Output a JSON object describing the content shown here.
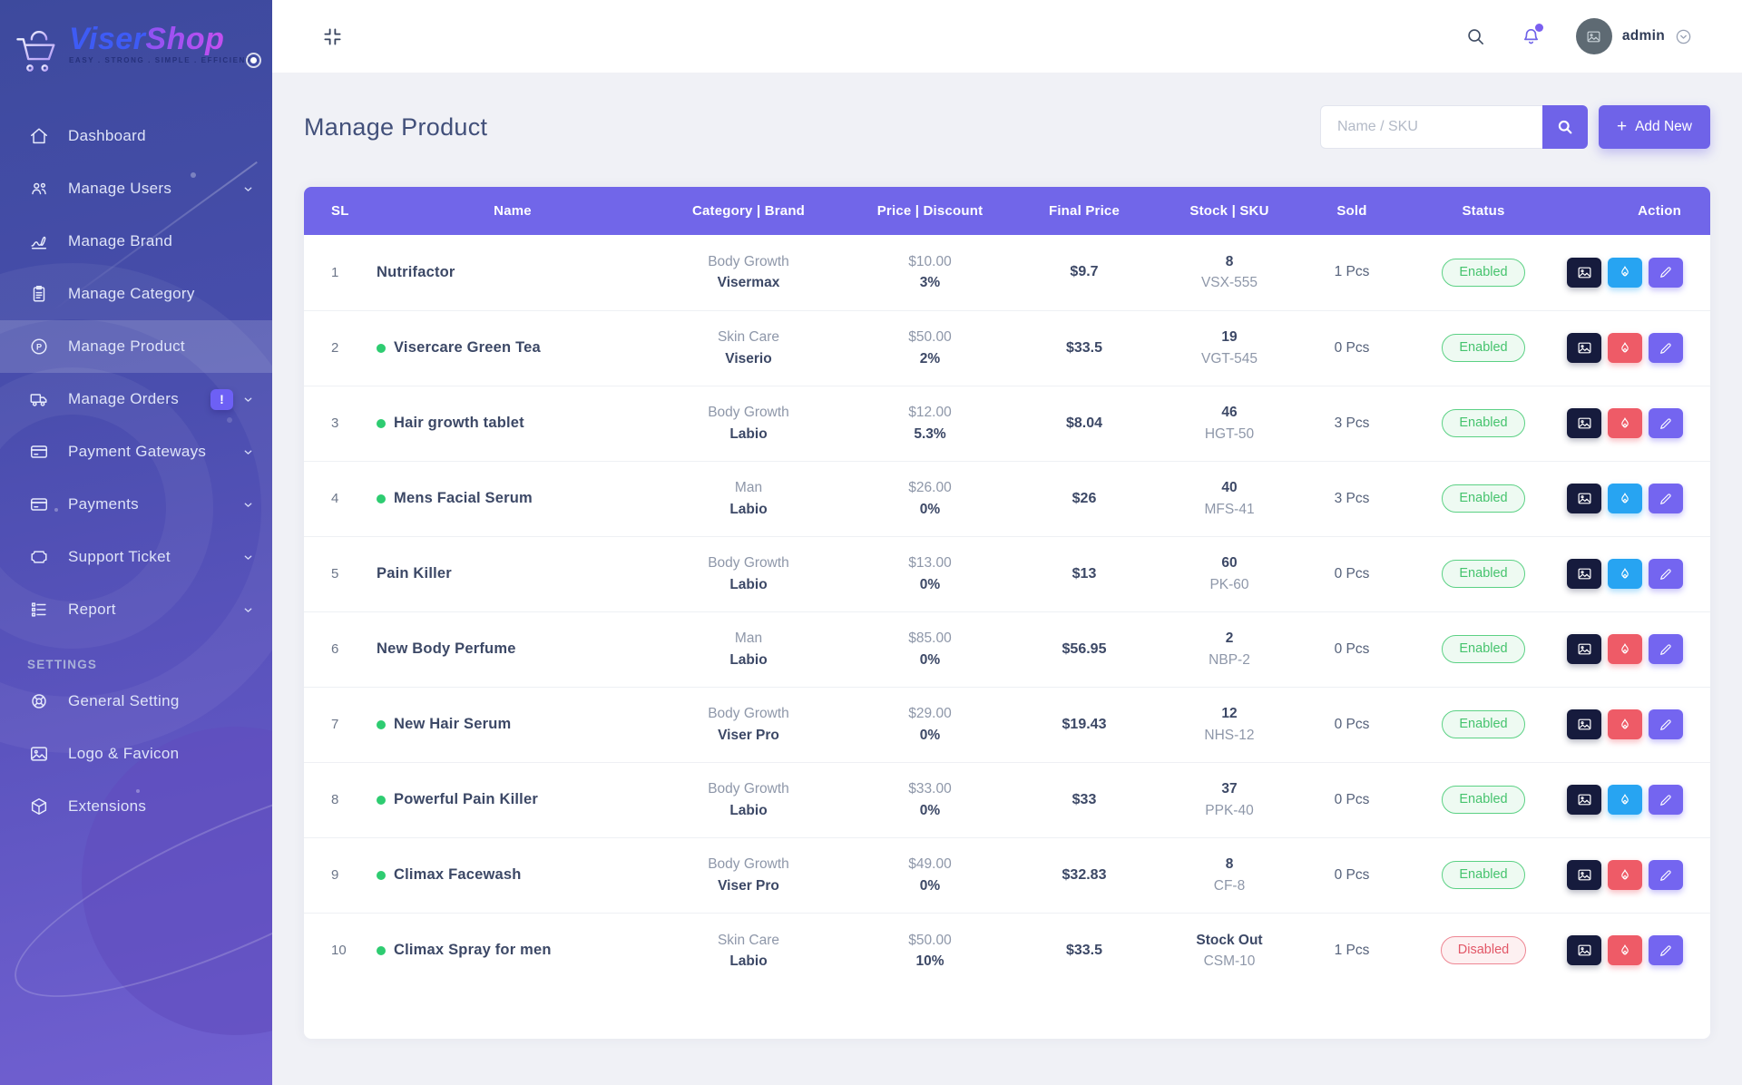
{
  "colors": {
    "accent": "#6f63e8",
    "table_header": "#7166e9",
    "sidebar_top": "#3d4a9d",
    "sidebar_bottom": "#7160d1",
    "flame_blue": "#27a4f2",
    "flame_red": "#ee5b67",
    "dark_button": "#161b3d",
    "edit_button": "#7465f0",
    "status_enabled": "#45c36d",
    "status_disabled": "#e25767",
    "dot_green": "#2ecc71"
  },
  "brand": {
    "name_part1": "Viser",
    "name_part2": "Shop",
    "tagline": "EASY . STRONG . SIMPLE . EFFICIENT",
    "logo_icon": "cart-icon"
  },
  "topbar": {
    "username": "admin",
    "icons": [
      "collapse-icon",
      "search-icon",
      "bell-icon",
      "avatar",
      "chevron-down-icon"
    ]
  },
  "sidebar": {
    "settings_header": "SETTINGS",
    "items": [
      {
        "label": "Dashboard",
        "icon": "home-icon",
        "slug": "dashboard",
        "arrow": false,
        "badge": null,
        "active": false
      },
      {
        "label": "Manage Users",
        "icon": "users-icon",
        "slug": "manage-users",
        "arrow": true,
        "badge": null,
        "active": false
      },
      {
        "label": "Manage Brand",
        "icon": "signature-icon",
        "slug": "manage-brand",
        "arrow": false,
        "badge": null,
        "active": false
      },
      {
        "label": "Manage Category",
        "icon": "clipboard-icon",
        "slug": "manage-category",
        "arrow": false,
        "badge": null,
        "active": false
      },
      {
        "label": "Manage Product",
        "icon": "product-icon",
        "slug": "manage-product",
        "arrow": false,
        "badge": null,
        "active": true
      },
      {
        "label": "Manage Orders",
        "icon": "truck-icon",
        "slug": "manage-orders",
        "arrow": true,
        "badge": "!",
        "active": false
      },
      {
        "label": "Payment Gateways",
        "icon": "credit-card-icon",
        "slug": "payment-gateways",
        "arrow": true,
        "badge": null,
        "active": false
      },
      {
        "label": "Payments",
        "icon": "credit-card-icon",
        "slug": "payments",
        "arrow": true,
        "badge": null,
        "active": false
      },
      {
        "label": "Support Ticket",
        "icon": "ticket-icon",
        "slug": "support-ticket",
        "arrow": true,
        "badge": null,
        "active": false
      },
      {
        "label": "Report",
        "icon": "list-icon",
        "slug": "report",
        "arrow": true,
        "badge": null,
        "active": false
      }
    ],
    "settings_items": [
      {
        "label": "General Setting",
        "icon": "gear-icon",
        "slug": "general-setting",
        "arrow": false,
        "badge": null,
        "active": false
      },
      {
        "label": "Logo & Favicon",
        "icon": "frame-icon",
        "slug": "logo-favicon",
        "arrow": false,
        "badge": null,
        "active": false
      },
      {
        "label": "Extensions",
        "icon": "cube-icon",
        "slug": "extensions",
        "arrow": false,
        "badge": null,
        "active": false
      }
    ]
  },
  "page": {
    "title": "Manage Product"
  },
  "search": {
    "placeholder": "Name / SKU"
  },
  "buttons": {
    "add_new": "Add New",
    "plus": "+"
  },
  "table": {
    "columns": [
      "SL",
      "Name",
      "Category | Brand",
      "Price | Discount",
      "Final Price",
      "Stock | SKU",
      "Sold",
      "Status",
      "Action"
    ],
    "action_icons": [
      "image-icon",
      "flame-icon",
      "pencil-icon"
    ],
    "rows": [
      {
        "sl": "1",
        "dot": false,
        "name": "Nutrifactor",
        "category": "Body Growth",
        "brand": "Visermax",
        "price": "$10.00",
        "discount": "3%",
        "final_price": "$9.7",
        "stock": "8",
        "sku": "VSX-555",
        "sold": "1 Pcs",
        "status": "Enabled",
        "status_type": "enabled",
        "flame": "blue"
      },
      {
        "sl": "2",
        "dot": true,
        "name": "Visercare Green Tea",
        "category": "Skin Care",
        "brand": "Viserio",
        "price": "$50.00",
        "discount": "2%",
        "final_price": "$33.5",
        "stock": "19",
        "sku": "VGT-545",
        "sold": "0 Pcs",
        "status": "Enabled",
        "status_type": "enabled",
        "flame": "red"
      },
      {
        "sl": "3",
        "dot": true,
        "name": "Hair growth tablet",
        "category": "Body Growth",
        "brand": "Labio",
        "price": "$12.00",
        "discount": "5.3%",
        "final_price": "$8.04",
        "stock": "46",
        "sku": "HGT-50",
        "sold": "3 Pcs",
        "status": "Enabled",
        "status_type": "enabled",
        "flame": "red"
      },
      {
        "sl": "4",
        "dot": true,
        "name": "Mens Facial Serum",
        "category": "Man",
        "brand": "Labio",
        "price": "$26.00",
        "discount": "0%",
        "final_price": "$26",
        "stock": "40",
        "sku": "MFS-41",
        "sold": "3 Pcs",
        "status": "Enabled",
        "status_type": "enabled",
        "flame": "blue"
      },
      {
        "sl": "5",
        "dot": false,
        "name": "Pain Killer",
        "category": "Body Growth",
        "brand": "Labio",
        "price": "$13.00",
        "discount": "0%",
        "final_price": "$13",
        "stock": "60",
        "sku": "PK-60",
        "sold": "0 Pcs",
        "status": "Enabled",
        "status_type": "enabled",
        "flame": "blue"
      },
      {
        "sl": "6",
        "dot": false,
        "name": "New Body Perfume",
        "category": "Man",
        "brand": "Labio",
        "price": "$85.00",
        "discount": "0%",
        "final_price": "$56.95",
        "stock": "2",
        "sku": "NBP-2",
        "sold": "0 Pcs",
        "status": "Enabled",
        "status_type": "enabled",
        "flame": "red"
      },
      {
        "sl": "7",
        "dot": true,
        "name": "New Hair Serum",
        "category": "Body Growth",
        "brand": "Viser Pro",
        "price": "$29.00",
        "discount": "0%",
        "final_price": "$19.43",
        "stock": "12",
        "sku": "NHS-12",
        "sold": "0 Pcs",
        "status": "Enabled",
        "status_type": "enabled",
        "flame": "red"
      },
      {
        "sl": "8",
        "dot": true,
        "name": "Powerful Pain Killer",
        "category": "Body Growth",
        "brand": "Labio",
        "price": "$33.00",
        "discount": "0%",
        "final_price": "$33",
        "stock": "37",
        "sku": "PPK-40",
        "sold": "0 Pcs",
        "status": "Enabled",
        "status_type": "enabled",
        "flame": "blue"
      },
      {
        "sl": "9",
        "dot": true,
        "name": "Climax Facewash",
        "category": "Body Growth",
        "brand": "Viser Pro",
        "price": "$49.00",
        "discount": "0%",
        "final_price": "$32.83",
        "stock": "8",
        "sku": "CF-8",
        "sold": "0 Pcs",
        "status": "Enabled",
        "status_type": "enabled",
        "flame": "red"
      },
      {
        "sl": "10",
        "dot": true,
        "name": "Climax Spray for men",
        "category": "Skin Care",
        "brand": "Labio",
        "price": "$50.00",
        "discount": "10%",
        "final_price": "$33.5",
        "stock": "Stock Out",
        "sku": "CSM-10",
        "sold": "1 Pcs",
        "status": "Disabled",
        "status_type": "disabled",
        "flame": "red"
      }
    ]
  }
}
